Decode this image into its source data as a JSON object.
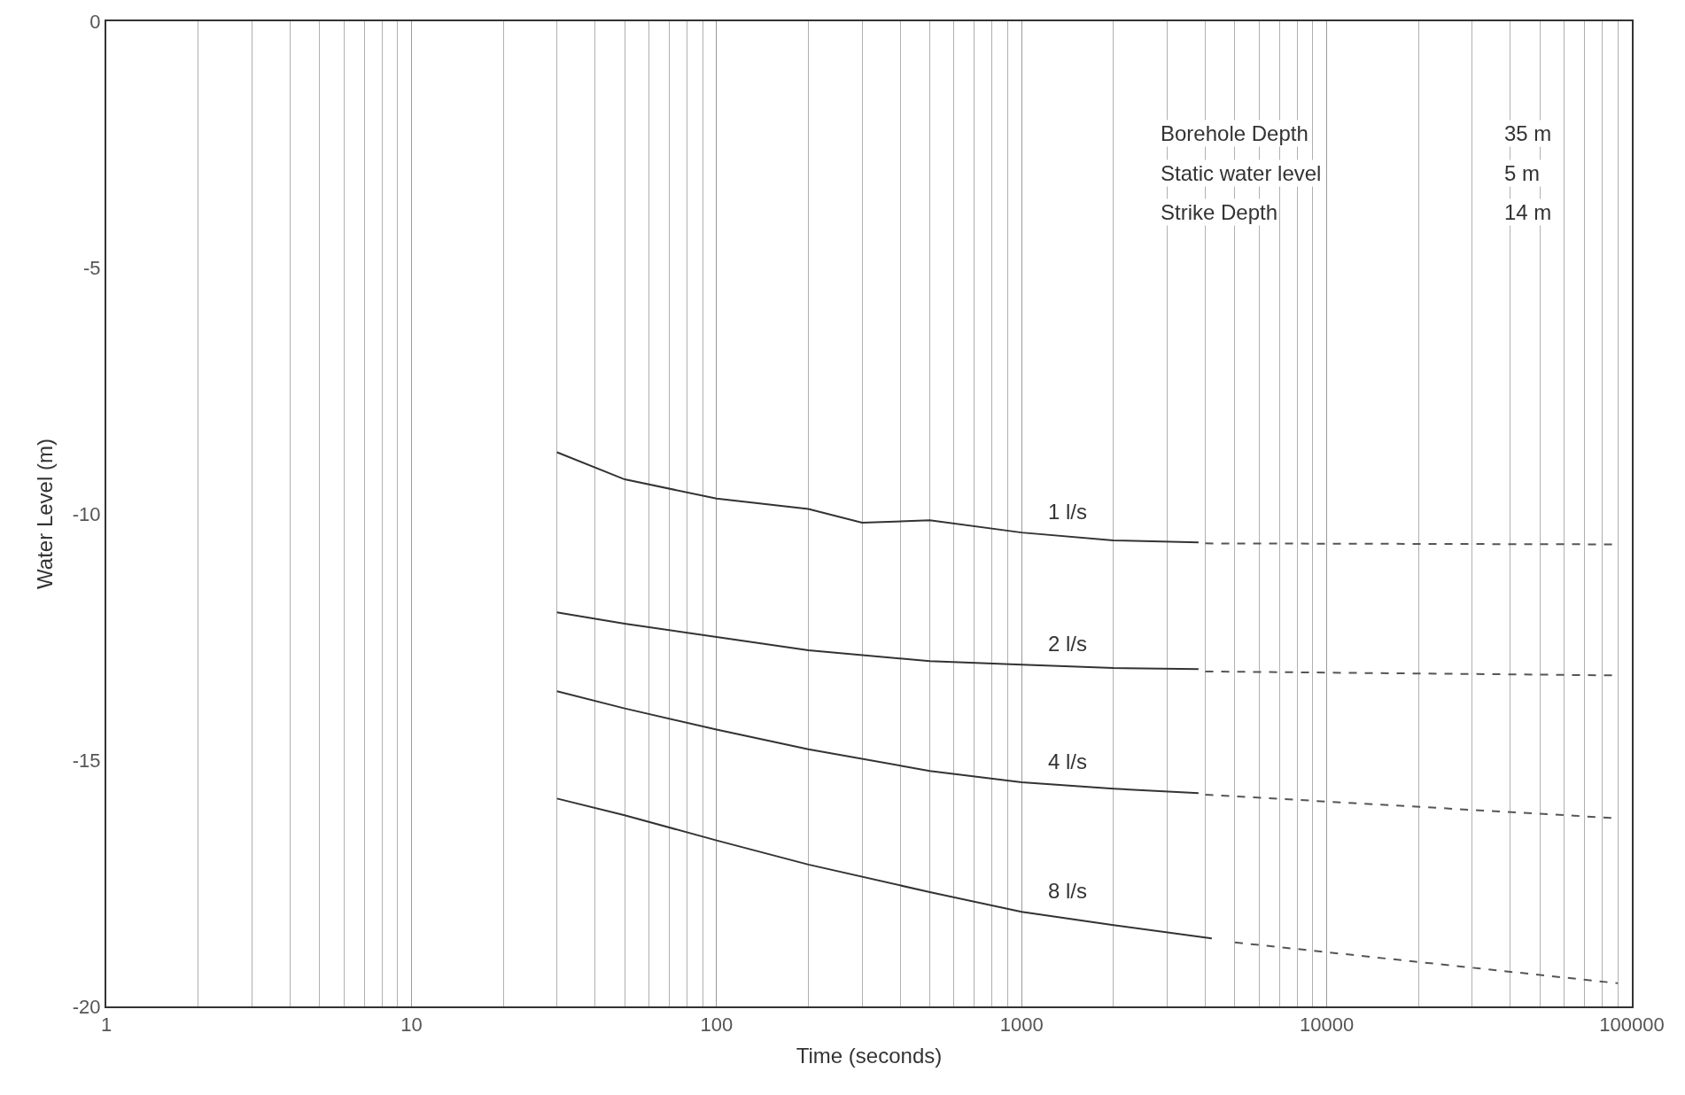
{
  "chart_data": {
    "type": "line",
    "xlabel": "Time (seconds)",
    "ylabel": "Water Level (m)",
    "log": "x",
    "grid": "x",
    "marker": "none",
    "line_style": "solid",
    "xlim": [
      1,
      100000
    ],
    "ylim": [
      -20,
      0
    ],
    "xticks": [
      1,
      10,
      100,
      1000,
      10000,
      100000
    ],
    "yticks": [
      -20,
      -15,
      -10,
      -5,
      0
    ],
    "series": [
      {
        "name": "1 l/s",
        "color": "#333333",
        "x": [
          30,
          50,
          100,
          200,
          300,
          500,
          1000,
          2000,
          3800
        ],
        "values": [
          -8.75,
          -9.3,
          -9.69,
          -9.9,
          -10.18,
          -10.13,
          -10.38,
          -10.54,
          -10.58
        ]
      },
      {
        "name": "2 l/s",
        "color": "#333333",
        "x": [
          30,
          50,
          100,
          200,
          500,
          1000,
          2000,
          3800
        ],
        "values": [
          -12.0,
          -12.23,
          -12.5,
          -12.77,
          -12.99,
          -13.06,
          -13.13,
          -13.15
        ]
      },
      {
        "name": "4 l/s",
        "color": "#333333",
        "x": [
          30,
          50,
          100,
          200,
          500,
          1000,
          2000,
          3800
        ],
        "values": [
          -13.6,
          -13.95,
          -14.38,
          -14.78,
          -15.22,
          -15.45,
          -15.58,
          -15.67
        ]
      },
      {
        "name": "8 l/s",
        "color": "#333333",
        "x": [
          30,
          50,
          100,
          200,
          500,
          1000,
          2000,
          4200
        ],
        "values": [
          -15.78,
          -16.12,
          -16.63,
          -17.12,
          -17.68,
          -18.08,
          -18.35,
          -18.62
        ]
      },
      {
        "color": "#555555",
        "line_style": "dashed",
        "x": [
          4000,
          90000
        ],
        "values": [
          -10.6,
          -10.62
        ]
      },
      {
        "color": "#555555",
        "line_style": "dashed",
        "x": [
          4000,
          90000
        ],
        "values": [
          -13.2,
          -13.28
        ]
      },
      {
        "color": "#555555",
        "line_style": "dashed",
        "x": [
          4000,
          90000
        ],
        "values": [
          -15.7,
          -16.18
        ]
      },
      {
        "color": "#555555",
        "line_style": "dashed",
        "x": [
          5000,
          90000
        ],
        "values": [
          -18.7,
          -19.53
        ]
      }
    ],
    "annotations": [
      "Borehole Depth",
      "35 m",
      "Static water level",
      "5 m",
      "Strike Depth",
      "14 m"
    ]
  }
}
